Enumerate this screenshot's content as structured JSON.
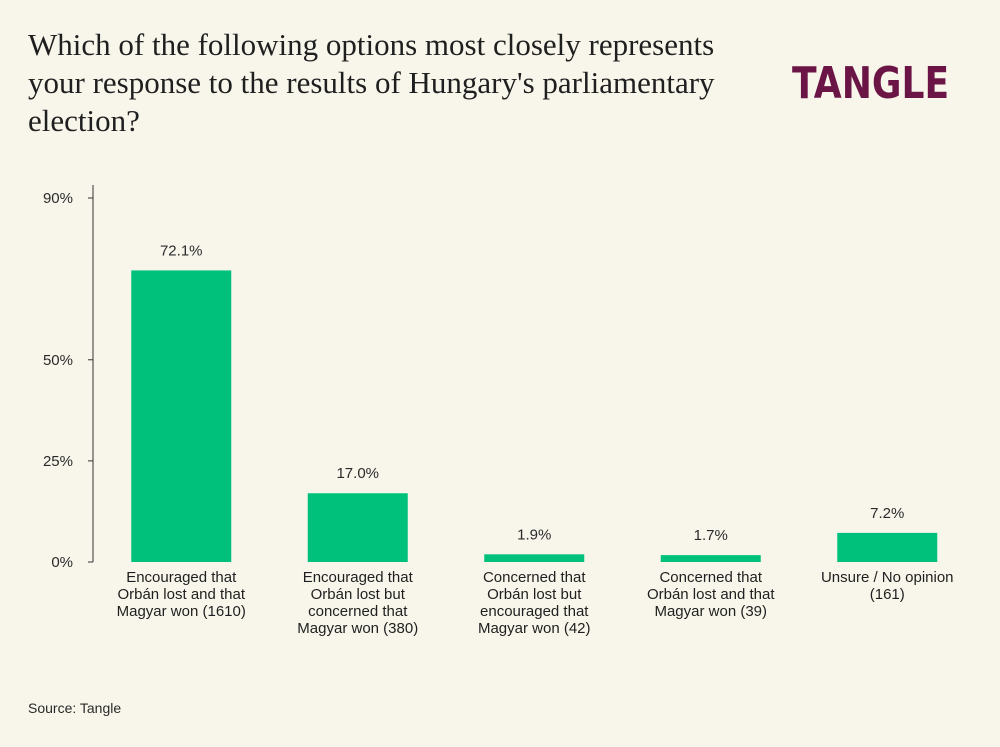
{
  "title": "Which of the following options most closely represents your response to the results of Hungary's parliamentary election?",
  "logo_text": "TANGLE",
  "source": "Source: Tangle",
  "colors": {
    "bar": "#00c17c",
    "axis": "#333333",
    "logo": "#6b1546",
    "background": "#f8f6eb"
  },
  "chart_data": {
    "type": "bar",
    "title": "Which of the following options most closely represents your response to the results of Hungary's parliamentary election?",
    "xlabel": "",
    "ylabel": "",
    "ylim": [
      0,
      90
    ],
    "yticks": [
      0,
      25,
      50,
      90
    ],
    "ytick_labels": [
      "0%",
      "25%",
      "50%",
      "90%"
    ],
    "categories": [
      [
        "Encouraged that",
        "Orbán lost and that",
        "Magyar won (1610)"
      ],
      [
        "Encouraged that",
        "Orbán lost but",
        "concerned that",
        "Magyar won (380)"
      ],
      [
        "Concerned that",
        "Orbán lost but",
        "encouraged that",
        "Magyar won (42)"
      ],
      [
        "Concerned that",
        "Orbán lost and that",
        "Magyar won (39)"
      ],
      [
        "Unsure / No opinion",
        "(161)"
      ]
    ],
    "values": [
      72.1,
      17.0,
      1.9,
      1.7,
      7.2
    ],
    "value_labels": [
      "72.1%",
      "17.0%",
      "1.9%",
      "1.7%",
      "7.2%"
    ],
    "grid": false,
    "legend": "none"
  }
}
